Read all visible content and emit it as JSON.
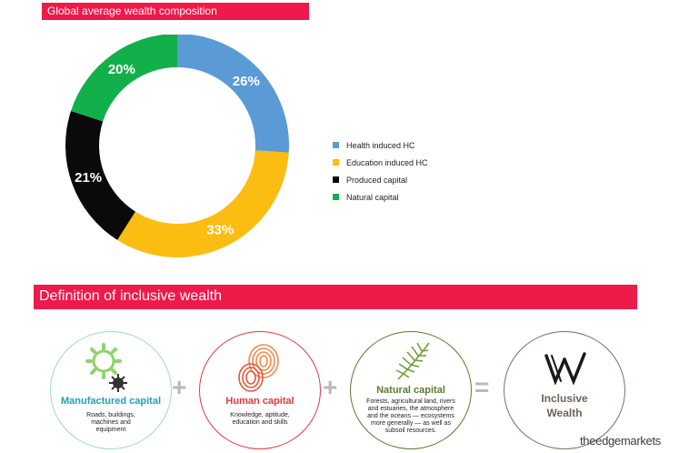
{
  "header": {
    "chart_title": "Global average wealth composition"
  },
  "chart_data": {
    "type": "pie",
    "title": "Global average wealth composition",
    "categories": [
      "Health induced HC",
      "Education induced HC",
      "Produced capital",
      "Natural capital"
    ],
    "values": [
      26,
      33,
      21,
      20
    ],
    "labels": [
      "26%",
      "33%",
      "21%",
      "20%"
    ],
    "colors": [
      "#5b9bd5",
      "#fbbd12",
      "#0a0a0a",
      "#12b04a"
    ],
    "legend_position": "right"
  },
  "definition": {
    "title": "Definition of inclusive wealth",
    "items": [
      {
        "title": "Manufactured capital",
        "desc": "Roads, buildings, machines and equipment",
        "color": "#1fa0b5"
      },
      {
        "title": "Human capital",
        "desc": "Knowledge, aptitude, education and skills",
        "color": "#e03a3e"
      },
      {
        "title": "Natural capital",
        "desc": "Forests, agricultural land, rivers and estuaries, the atmosphere and the oceans — ecosystems more generally — as well as subsoil resources.",
        "color": "#5a7a2e"
      }
    ],
    "result": {
      "line1": "Inclusive",
      "line2": "Wealth",
      "color": "#6b6558"
    },
    "operators": {
      "plus": "+",
      "equals": "="
    }
  },
  "footer": {
    "watermark": "theedgemarkets"
  }
}
